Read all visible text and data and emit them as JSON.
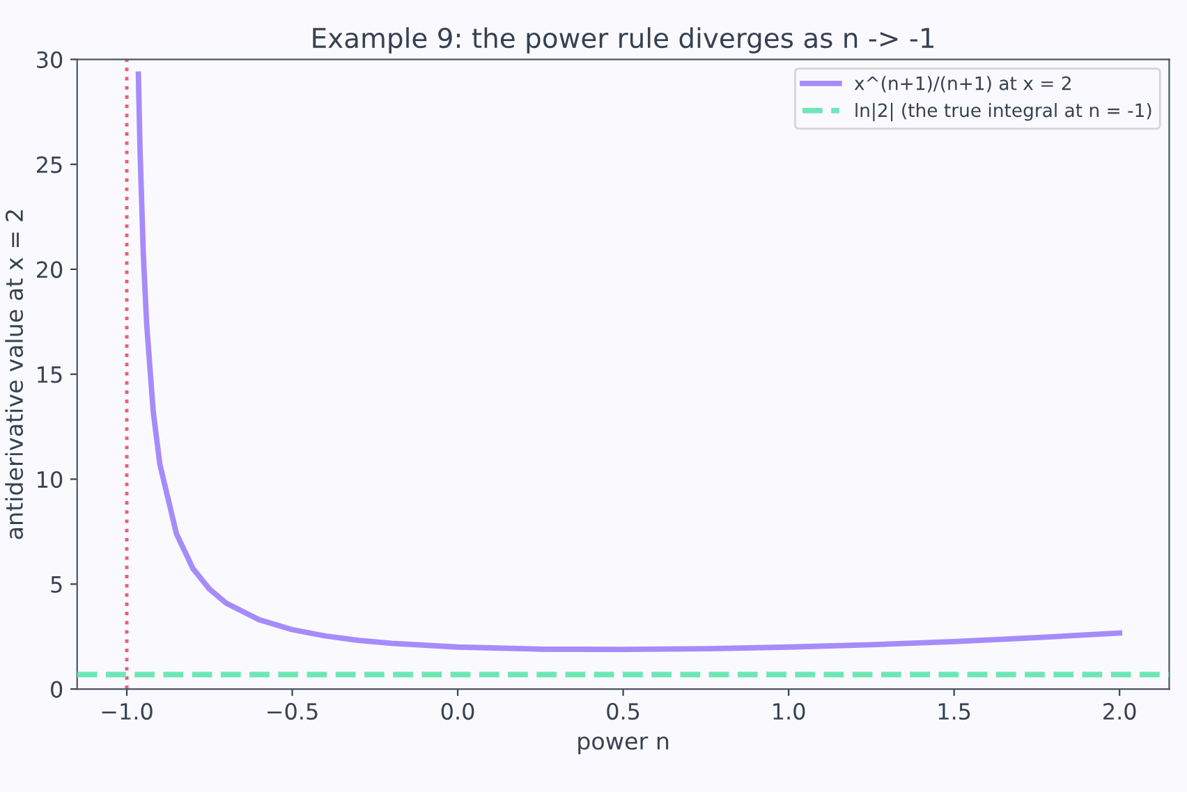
{
  "chart_data": {
    "type": "line",
    "title": "Example 9: the power rule diverges as n -> -1",
    "xlabel": "power n",
    "ylabel": "antiderivative value at x = 2",
    "series": [
      {
        "name": "x^(n+1)/(n+1) at x = 2",
        "color": "#a78bfa",
        "x": [
          -0.965,
          -0.96,
          -0.95,
          -0.94,
          -0.92,
          -0.9,
          -0.85,
          -0.8,
          -0.75,
          -0.7,
          -0.6,
          -0.5,
          -0.4,
          -0.3,
          -0.2,
          0,
          0.25,
          0.5,
          0.75,
          1.0,
          1.25,
          1.5,
          1.75,
          2.0
        ],
        "values": [
          29.3,
          25.7,
          20.7,
          17.4,
          13.2,
          10.7,
          7.4,
          5.74,
          4.76,
          4.1,
          3.3,
          2.83,
          2.53,
          2.32,
          2.18,
          2.0,
          1.9,
          1.89,
          1.92,
          2.0,
          2.11,
          2.26,
          2.45,
          2.67
        ]
      },
      {
        "name": "ln|2| (the true integral at n = -1)",
        "color": "#6ee7b7",
        "line_style": "dashed",
        "x": [
          -1.15,
          2.15
        ],
        "values": [
          0.69,
          0.69
        ]
      }
    ],
    "ref_lines": [
      {
        "axis": "x",
        "value": -1,
        "label": null,
        "color": "#e8607a",
        "line_style": "dotted"
      }
    ],
    "xlim": [
      -1.15,
      2.15
    ],
    "ylim": [
      0,
      30
    ],
    "xticks": [
      {
        "value": -1.0,
        "label": "−1.0"
      },
      {
        "value": -0.5,
        "label": "−0.5"
      },
      {
        "value": 0,
        "label": "0.0"
      },
      {
        "value": 0.5,
        "label": "0.5"
      },
      {
        "value": 1.0,
        "label": "1.0"
      },
      {
        "value": 1.5,
        "label": "1.5"
      },
      {
        "value": 2.0,
        "label": "2.0"
      }
    ],
    "yticks": [
      0,
      5,
      10,
      15,
      20,
      25,
      30
    ],
    "legend": "top right",
    "grid": false,
    "marker": "none",
    "line_style": "solid"
  }
}
